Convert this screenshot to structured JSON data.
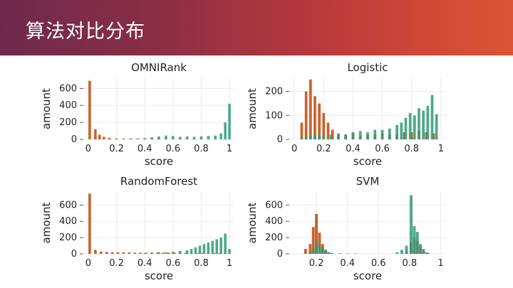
{
  "header": {
    "title": "算法对比分布"
  },
  "colors": {
    "orange": "#c9622b",
    "green": "#2e9a78",
    "overlap": "#7b7e3d"
  },
  "chart_data": [
    {
      "type": "bar",
      "title": "OMNIRank",
      "xlabel": "score",
      "ylabel": "amount",
      "xlim": [
        -0.03,
        1.03
      ],
      "ylim": [
        0,
        720
      ],
      "xticks": [
        "0",
        "0.2",
        "0.4",
        "0.6",
        "0.8",
        "1"
      ],
      "xtick_values": [
        0,
        0.2,
        0.4,
        0.6,
        0.8,
        1
      ],
      "yticks": [
        "0",
        "200",
        "400",
        "600"
      ],
      "ytick_values": [
        0,
        200,
        400,
        600
      ],
      "series": [
        {
          "x": [
            0.01,
            0.05,
            0.08,
            0.11,
            0.15,
            0.2,
            0.25,
            0.3,
            0.35,
            0.4,
            0.45,
            0.5,
            0.55,
            0.6,
            0.65,
            0.7,
            0.75,
            0.8,
            0.85,
            0.9
          ],
          "values": [
            690,
            120,
            55,
            30,
            18,
            12,
            10,
            10,
            8,
            8,
            10,
            12,
            10,
            10,
            8,
            8,
            6,
            6,
            4,
            4
          ]
        },
        {
          "x": [
            0.3,
            0.35,
            0.4,
            0.45,
            0.5,
            0.55,
            0.6,
            0.65,
            0.7,
            0.75,
            0.8,
            0.85,
            0.9,
            0.94,
            0.97,
            1.0
          ],
          "values": [
            8,
            12,
            15,
            25,
            35,
            45,
            40,
            30,
            35,
            30,
            35,
            40,
            45,
            70,
            200,
            420
          ]
        }
      ]
    },
    {
      "type": "bar",
      "title": "Logistic",
      "xlabel": "score",
      "ylabel": "amount",
      "xlim": [
        -0.03,
        1.03
      ],
      "ylim": [
        0,
        255
      ],
      "xticks": [
        "0",
        "0.2",
        "0.4",
        "0.6",
        "0.8",
        "1"
      ],
      "xtick_values": [
        0,
        0.2,
        0.4,
        0.6,
        0.8,
        1
      ],
      "yticks": [
        "0",
        "100",
        "200"
      ],
      "ytick_values": [
        0,
        100,
        200
      ],
      "series": [
        {
          "x": [
            0.05,
            0.08,
            0.11,
            0.14,
            0.17,
            0.2,
            0.23,
            0.26,
            0.3,
            0.35,
            0.4,
            0.45,
            0.5,
            0.55,
            0.6,
            0.65,
            0.7,
            0.75,
            0.8,
            0.85,
            0.9,
            0.95
          ],
          "values": [
            70,
            200,
            250,
            180,
            150,
            110,
            70,
            40,
            20,
            20,
            25,
            15,
            20,
            20,
            25,
            20,
            20,
            30,
            30,
            35,
            30,
            25
          ]
        },
        {
          "x": [
            0.05,
            0.08,
            0.11,
            0.14,
            0.17,
            0.2,
            0.25,
            0.3,
            0.35,
            0.4,
            0.45,
            0.5,
            0.55,
            0.6,
            0.65,
            0.7,
            0.73,
            0.76,
            0.79,
            0.82,
            0.85,
            0.88,
            0.91,
            0.94,
            0.97
          ],
          "values": [
            10,
            10,
            15,
            20,
            15,
            20,
            20,
            25,
            20,
            30,
            35,
            30,
            40,
            40,
            45,
            60,
            70,
            90,
            110,
            100,
            130,
            120,
            140,
            185,
            105
          ]
        }
      ]
    },
    {
      "type": "bar",
      "title": "RandomForest",
      "xlabel": "score",
      "ylabel": "amount",
      "xlim": [
        -0.03,
        1.03
      ],
      "ylim": [
        0,
        760
      ],
      "xticks": [
        "0",
        "0.2",
        "0.4",
        "0.6",
        "0.8",
        "1"
      ],
      "xtick_values": [
        0,
        0.2,
        0.4,
        0.6,
        0.8,
        1
      ],
      "yticks": [
        "0",
        "200",
        "400",
        "600"
      ],
      "ytick_values": [
        0,
        200,
        400,
        600
      ],
      "series": [
        {
          "x": [
            0.01,
            0.05,
            0.09,
            0.13,
            0.17,
            0.21,
            0.25,
            0.29,
            0.33,
            0.37,
            0.41,
            0.45,
            0.49,
            0.53,
            0.57,
            0.61,
            0.65,
            0.69,
            0.73,
            0.77,
            0.81,
            0.85,
            0.89,
            0.93,
            0.97
          ],
          "values": [
            740,
            50,
            30,
            25,
            20,
            20,
            20,
            18,
            15,
            15,
            15,
            15,
            15,
            15,
            15,
            15,
            15,
            12,
            12,
            10,
            10,
            10,
            10,
            8,
            6
          ]
        },
        {
          "x": [
            0.4,
            0.45,
            0.5,
            0.55,
            0.6,
            0.65,
            0.7,
            0.73,
            0.76,
            0.79,
            0.82,
            0.85,
            0.88,
            0.91,
            0.94,
            0.97,
            1.0
          ],
          "values": [
            10,
            15,
            20,
            20,
            25,
            35,
            45,
            60,
            80,
            100,
            120,
            140,
            160,
            180,
            200,
            250,
            60
          ]
        }
      ]
    },
    {
      "type": "bar",
      "title": "SVM",
      "xlabel": "score",
      "ylabel": "amount",
      "xlim": [
        0.03,
        1.03
      ],
      "ylim": [
        0,
        760
      ],
      "xticks": [
        "0.2",
        "0.4",
        "0.6",
        "0.8",
        "1"
      ],
      "xtick_values": [
        0.2,
        0.4,
        0.6,
        0.8,
        1
      ],
      "yticks": [
        "0",
        "200",
        "400",
        "600"
      ],
      "ytick_values": [
        0,
        200,
        400,
        600
      ],
      "series": [
        {
          "x": [
            0.13,
            0.16,
            0.18,
            0.2,
            0.22,
            0.24,
            0.26,
            0.28,
            0.3,
            0.35,
            0.4,
            0.45,
            0.75,
            0.78,
            0.81,
            0.83,
            0.85,
            0.87,
            0.89,
            0.92
          ],
          "values": [
            60,
            120,
            330,
            490,
            260,
            120,
            50,
            20,
            10,
            5,
            5,
            5,
            10,
            30,
            140,
            200,
            160,
            90,
            40,
            10
          ]
        },
        {
          "x": [
            0.16,
            0.18,
            0.2,
            0.22,
            0.24,
            0.26,
            0.28,
            0.3,
            0.35,
            0.72,
            0.75,
            0.78,
            0.81,
            0.83,
            0.85,
            0.87,
            0.89,
            0.91
          ],
          "values": [
            20,
            60,
            160,
            100,
            80,
            40,
            20,
            10,
            5,
            20,
            50,
            100,
            720,
            340,
            270,
            120,
            60,
            20
          ]
        }
      ]
    }
  ]
}
